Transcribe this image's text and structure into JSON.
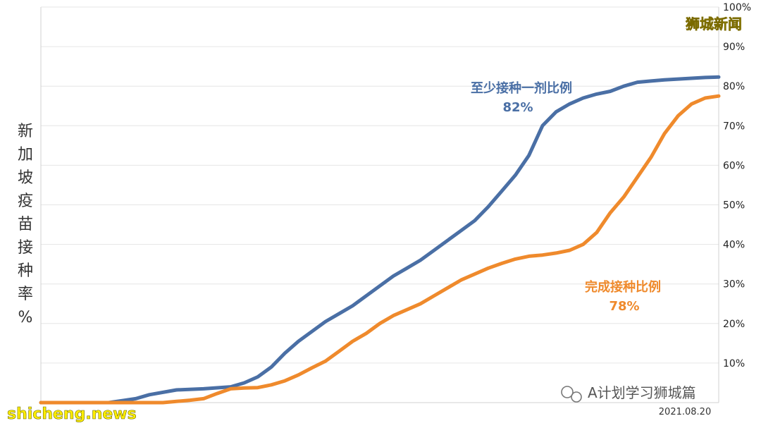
{
  "chart_data": {
    "type": "line",
    "ylabel": "新加坡疫苗接种率%",
    "y_ticks": [
      "10%",
      "20%",
      "30%",
      "40%",
      "50%",
      "60%",
      "70%",
      "80%",
      "90%",
      "100%"
    ],
    "ylim": [
      0,
      100
    ],
    "x_ticks": [
      "2021.08.20"
    ],
    "xlim": [
      0,
      100
    ],
    "grid": true,
    "y_axis_position": "right",
    "series": [
      {
        "name": "至少接种一剂比例",
        "value_label": "82%",
        "color": "#4a6fa5",
        "x": [
          0,
          6,
          10,
          12,
          14,
          16,
          20,
          24,
          28,
          30,
          32,
          34,
          36,
          38,
          40,
          42,
          44,
          46,
          48,
          50,
          52,
          54,
          56,
          58,
          60,
          62,
          64,
          66,
          68,
          70,
          72,
          74,
          76,
          78,
          80,
          82,
          84,
          86,
          88,
          90,
          92,
          94,
          96,
          98,
          100
        ],
        "y": [
          0,
          0,
          0,
          0.5,
          1,
          2,
          3.2,
          3.5,
          4,
          5,
          6.5,
          9,
          12.5,
          15.5,
          18,
          20.5,
          22.5,
          24.5,
          27,
          29.5,
          32,
          34,
          36,
          38.5,
          41,
          43.5,
          46,
          49.5,
          53.5,
          57.5,
          62.5,
          70,
          73.5,
          75.5,
          77,
          78,
          78.7,
          80,
          81,
          81.3,
          81.6,
          81.8,
          82,
          82.2,
          82.3
        ]
      },
      {
        "name": "完成接种比例",
        "value_label": "78%",
        "color": "#ef8a2c",
        "x": [
          0,
          10,
          14,
          16,
          18,
          20,
          22,
          24,
          26,
          28,
          30,
          32,
          34,
          36,
          38,
          40,
          42,
          44,
          46,
          48,
          50,
          52,
          54,
          56,
          58,
          60,
          62,
          64,
          66,
          68,
          70,
          72,
          74,
          76,
          78,
          80,
          82,
          84,
          86,
          88,
          90,
          92,
          94,
          96,
          98,
          100
        ],
        "y": [
          0,
          0,
          0,
          0,
          0,
          0.3,
          0.6,
          1,
          2.3,
          3.5,
          3.7,
          3.8,
          4.5,
          5.5,
          7,
          8.8,
          10.5,
          13,
          15.5,
          17.5,
          20,
          22,
          23.5,
          25,
          27,
          29,
          31,
          32.5,
          34,
          35.2,
          36.3,
          37,
          37.3,
          37.8,
          38.5,
          40,
          43,
          48,
          52,
          57,
          62,
          68,
          72.5,
          75.5,
          77,
          77.5
        ]
      }
    ]
  },
  "watermarks": {
    "top_right": "狮城新闻",
    "bottom_left": "shicheng.news",
    "bottom_right": "A计划学习狮城篇"
  }
}
